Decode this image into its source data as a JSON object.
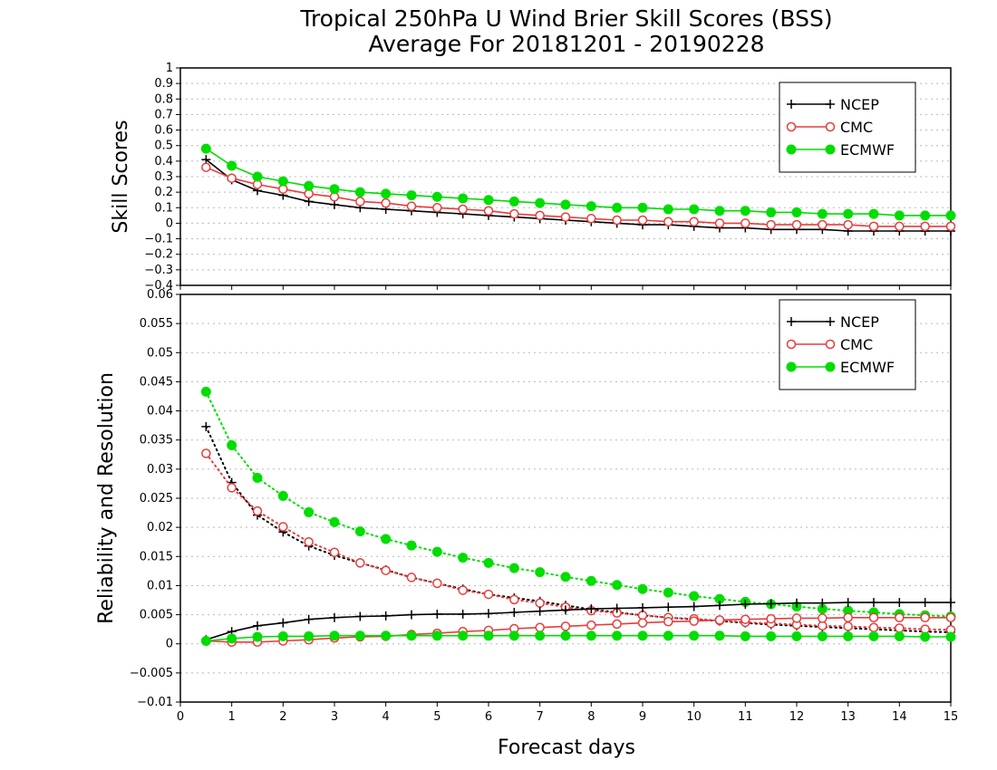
{
  "title_line1": "Tropical 250hPa U Wind Brier Skill Scores (BSS)",
  "title_line2": "Average For 20181201 - 20190228",
  "xlabel": "Forecast days",
  "colors": {
    "NCEP": "#000000",
    "CMC": "#e83c3c",
    "ECMWF": "#00dd00"
  },
  "chart_data": [
    {
      "type": "line",
      "ylabel": "Skill Scores",
      "xlim": [
        0,
        15
      ],
      "ylim": [
        -0.4,
        1
      ],
      "x_ticks": [
        0,
        1,
        2,
        3,
        4,
        5,
        6,
        7,
        8,
        9,
        10,
        11,
        12,
        13,
        14,
        15
      ],
      "y_ticks": [
        -0.4,
        -0.3,
        -0.2,
        -0.1,
        0,
        0.1,
        0.2,
        0.3,
        0.4,
        0.5,
        0.6,
        0.7,
        0.8,
        0.9,
        1
      ],
      "y_tick_labels": [
        "−0.4",
        "−0.3",
        "−0.2",
        "−0.1",
        "0",
        "0.1",
        "0.2",
        "0.3",
        "0.4",
        "0.5",
        "0.6",
        "0.7",
        "0.8",
        "0.9",
        "1"
      ],
      "grid": true,
      "legend": "top-right",
      "x": [
        0.5,
        1,
        1.5,
        2,
        2.5,
        3,
        3.5,
        4,
        4.5,
        5,
        5.5,
        6,
        6.5,
        7,
        7.5,
        8,
        8.5,
        9,
        9.5,
        10,
        10.5,
        11,
        11.5,
        12,
        12.5,
        13,
        13.5,
        14,
        14.5,
        15
      ],
      "series": [
        {
          "name": "NCEP",
          "marker": "plus",
          "style": "solid",
          "values": [
            0.41,
            0.28,
            0.21,
            0.18,
            0.14,
            0.12,
            0.1,
            0.09,
            0.08,
            0.07,
            0.06,
            0.05,
            0.04,
            0.03,
            0.02,
            0.01,
            0.0,
            -0.01,
            -0.01,
            -0.02,
            -0.03,
            -0.03,
            -0.04,
            -0.04,
            -0.04,
            -0.05,
            -0.05,
            -0.05,
            -0.05,
            -0.05
          ]
        },
        {
          "name": "CMC",
          "marker": "open-circle",
          "style": "solid",
          "values": [
            0.36,
            0.29,
            0.25,
            0.22,
            0.19,
            0.17,
            0.14,
            0.13,
            0.11,
            0.1,
            0.09,
            0.08,
            0.06,
            0.05,
            0.04,
            0.03,
            0.02,
            0.02,
            0.01,
            0.01,
            0.0,
            0.0,
            -0.01,
            -0.01,
            -0.01,
            -0.01,
            -0.02,
            -0.02,
            -0.02,
            -0.02
          ]
        },
        {
          "name": "ECMWF",
          "marker": "filled-circle",
          "style": "solid",
          "values": [
            0.48,
            0.37,
            0.3,
            0.27,
            0.24,
            0.22,
            0.2,
            0.19,
            0.18,
            0.17,
            0.16,
            0.15,
            0.14,
            0.13,
            0.12,
            0.11,
            0.1,
            0.1,
            0.09,
            0.09,
            0.08,
            0.08,
            0.07,
            0.07,
            0.06,
            0.06,
            0.06,
            0.05,
            0.05,
            0.05
          ]
        }
      ]
    },
    {
      "type": "line",
      "ylabel": "Reliability and Resolution",
      "xlim": [
        0,
        15
      ],
      "ylim": [
        -0.01,
        0.06
      ],
      "x_ticks": [
        0,
        1,
        2,
        3,
        4,
        5,
        6,
        7,
        8,
        9,
        10,
        11,
        12,
        13,
        14,
        15
      ],
      "y_ticks": [
        -0.01,
        -0.005,
        0,
        0.005,
        0.01,
        0.015,
        0.02,
        0.025,
        0.03,
        0.035,
        0.04,
        0.045,
        0.05,
        0.055,
        0.06
      ],
      "y_tick_labels": [
        "−0.01",
        "−0.005",
        "0",
        "0.005",
        "0.01",
        "0.015",
        "0.02",
        "0.025",
        "0.03",
        "0.035",
        "0.04",
        "0.045",
        "0.05",
        "0.055",
        "0.06"
      ],
      "grid": true,
      "legend": "top-right",
      "x": [
        0.5,
        1,
        1.5,
        2,
        2.5,
        3,
        3.5,
        4,
        4.5,
        5,
        5.5,
        6,
        6.5,
        7,
        7.5,
        8,
        8.5,
        9,
        9.5,
        10,
        10.5,
        11,
        11.5,
        12,
        12.5,
        13,
        13.5,
        14,
        14.5,
        15
      ],
      "series": [
        {
          "name": "NCEP",
          "metric": "reliability",
          "marker": "plus",
          "style": "dotted",
          "values": [
            0.0373,
            0.0277,
            0.0221,
            0.0192,
            0.0168,
            0.0152,
            0.0139,
            0.0127,
            0.0114,
            0.0104,
            0.0094,
            0.0085,
            0.0079,
            0.0073,
            0.0066,
            0.0059,
            0.0054,
            0.0049,
            0.0045,
            0.0042,
            0.0039,
            0.0036,
            0.0033,
            0.0031,
            0.0029,
            0.0027,
            0.0025,
            0.0023,
            0.0021,
            0.002
          ]
        },
        {
          "name": "CMC",
          "metric": "reliability",
          "marker": "open-circle",
          "style": "dotted",
          "values": [
            0.0327,
            0.0268,
            0.0228,
            0.0201,
            0.0175,
            0.0157,
            0.0139,
            0.0126,
            0.0114,
            0.0104,
            0.0092,
            0.0085,
            0.0076,
            0.007,
            0.0063,
            0.0057,
            0.0053,
            0.0049,
            0.0045,
            0.0043,
            0.004,
            0.0037,
            0.0035,
            0.0033,
            0.0031,
            0.003,
            0.0028,
            0.0027,
            0.0025,
            0.0024
          ]
        },
        {
          "name": "ECMWF",
          "metric": "reliability",
          "marker": "filled-circle",
          "style": "dotted",
          "values": [
            0.0433,
            0.0341,
            0.0285,
            0.0254,
            0.0226,
            0.0209,
            0.0193,
            0.018,
            0.0169,
            0.0158,
            0.0148,
            0.0139,
            0.013,
            0.0123,
            0.0115,
            0.0108,
            0.0101,
            0.0094,
            0.0088,
            0.0082,
            0.0077,
            0.0072,
            0.0068,
            0.0064,
            0.006,
            0.0057,
            0.0054,
            0.0051,
            0.0049,
            0.0047
          ]
        },
        {
          "name": "NCEP",
          "metric": "resolution",
          "marker": "plus",
          "style": "solid",
          "values": [
            0.0007,
            0.0021,
            0.0031,
            0.0036,
            0.0042,
            0.0045,
            0.0047,
            0.0048,
            0.005,
            0.0051,
            0.0051,
            0.0052,
            0.0054,
            0.0056,
            0.0058,
            0.006,
            0.0061,
            0.0062,
            0.0063,
            0.0064,
            0.0066,
            0.0068,
            0.0069,
            0.007,
            0.007,
            0.0071,
            0.0071,
            0.0071,
            0.0071,
            0.0071
          ]
        },
        {
          "name": "CMC",
          "metric": "resolution",
          "marker": "open-circle",
          "style": "solid",
          "values": [
            0.0005,
            0.0003,
            0.0003,
            0.0005,
            0.0007,
            0.001,
            0.0012,
            0.0013,
            0.0016,
            0.0018,
            0.0021,
            0.0023,
            0.0026,
            0.0028,
            0.003,
            0.0032,
            0.0034,
            0.0036,
            0.0038,
            0.0039,
            0.0041,
            0.0042,
            0.0043,
            0.0044,
            0.0044,
            0.0045,
            0.0045,
            0.0045,
            0.0045,
            0.0045
          ]
        },
        {
          "name": "ECMWF",
          "metric": "resolution",
          "marker": "filled-circle",
          "style": "solid",
          "values": [
            0.0005,
            0.0009,
            0.0012,
            0.0013,
            0.0013,
            0.0014,
            0.0014,
            0.0014,
            0.0014,
            0.0014,
            0.0014,
            0.0014,
            0.0014,
            0.0014,
            0.0014,
            0.0014,
            0.0014,
            0.0014,
            0.0014,
            0.0014,
            0.0014,
            0.0013,
            0.0013,
            0.0013,
            0.0013,
            0.0013,
            0.0013,
            0.0013,
            0.0012,
            0.0012
          ]
        }
      ]
    }
  ]
}
